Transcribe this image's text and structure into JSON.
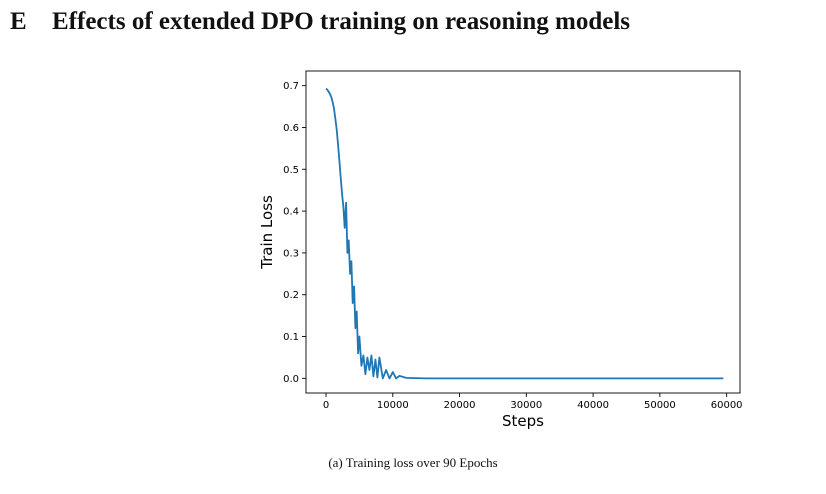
{
  "section": {
    "number": "E",
    "title": "Effects of extended DPO training on reasoning models"
  },
  "caption": "(a) Training loss over 90 Epochs",
  "colors": {
    "line": "#1f77b4",
    "axis": "#000000"
  },
  "chart_data": {
    "type": "line",
    "title": "",
    "xlabel": "Steps",
    "ylabel": "Train Loss",
    "xlim": [
      -3000,
      62000
    ],
    "ylim": [
      -0.035,
      0.735
    ],
    "xticks": [
      0,
      10000,
      20000,
      30000,
      40000,
      50000,
      60000
    ],
    "yticks": [
      0.0,
      0.1,
      0.2,
      0.3,
      0.4,
      0.5,
      0.6,
      0.7
    ],
    "xtick_labels": [
      "0",
      "10000",
      "20000",
      "30000",
      "40000",
      "50000",
      "60000"
    ],
    "ytick_labels": [
      "0.0",
      "0.1",
      "0.2",
      "0.3",
      "0.4",
      "0.5",
      "0.6",
      "0.7"
    ],
    "grid": false,
    "series": [
      {
        "x": [
          0,
          200,
          400,
          600,
          800,
          1000,
          1200,
          1400,
          1600,
          1800,
          2000,
          2200,
          2400,
          2600,
          2800,
          3000,
          3200,
          3400,
          3600,
          3800,
          4000,
          4200,
          4400,
          4600,
          4800,
          5000,
          5300,
          5600,
          5900,
          6200,
          6500,
          6800,
          7100,
          7400,
          7700,
          8000,
          8500,
          9000,
          9500,
          10000,
          10500,
          11000,
          12000,
          15000,
          20000,
          30000,
          40000,
          50000,
          59500
        ],
        "y": [
          0.693,
          0.69,
          0.685,
          0.68,
          0.672,
          0.66,
          0.645,
          0.62,
          0.595,
          0.56,
          0.52,
          0.48,
          0.44,
          0.41,
          0.36,
          0.42,
          0.3,
          0.33,
          0.25,
          0.28,
          0.18,
          0.22,
          0.12,
          0.16,
          0.06,
          0.1,
          0.03,
          0.055,
          0.01,
          0.05,
          0.02,
          0.055,
          0.005,
          0.045,
          0.002,
          0.05,
          0.0,
          0.02,
          0.0,
          0.015,
          0.0,
          0.006,
          0.001,
          0.0,
          0.0,
          0.0,
          0.0,
          0.0,
          0.0
        ]
      }
    ]
  }
}
